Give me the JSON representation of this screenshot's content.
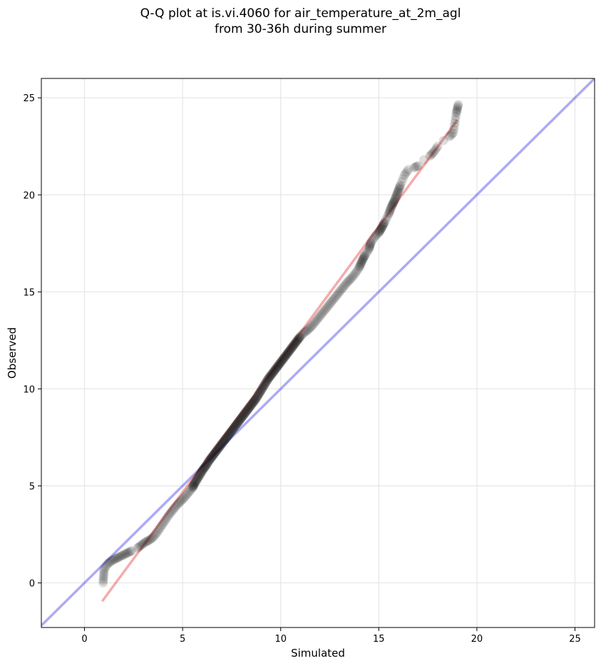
{
  "chart_data": {
    "type": "scatter",
    "title_line1": "Q-Q plot at is.vi.4060 for air_temperature_at_2m_agl",
    "title_line2": "from 30-36h during summer",
    "xlabel": "Simulated",
    "ylabel": "Observed",
    "xlim": [
      -2.2,
      26
    ],
    "ylim": [
      -2.3,
      26
    ],
    "xticks": [
      0,
      5,
      10,
      15,
      20,
      25
    ],
    "yticks": [
      0,
      5,
      10,
      15,
      20,
      25
    ],
    "grid": true,
    "colors": {
      "points": "#000000",
      "identity_line": "#0000dd",
      "fit_line": "#dd0000",
      "grid": "#e6e6e6"
    },
    "identity_line": {
      "x": [
        -2.2,
        26
      ],
      "y": [
        -2.2,
        26
      ]
    },
    "fit_line": {
      "x": [
        0.9,
        19.0
      ],
      "y": [
        -0.95,
        23.85
      ]
    },
    "quantiles": [
      [
        0.95,
        0.0
      ],
      [
        1.0,
        0.7
      ],
      [
        1.2,
        1.0
      ],
      [
        1.4,
        1.15
      ],
      [
        1.6,
        1.25
      ],
      [
        1.8,
        1.35
      ],
      [
        2.0,
        1.45
      ],
      [
        2.2,
        1.55
      ],
      [
        2.4,
        1.65
      ],
      [
        2.7,
        1.8
      ],
      [
        2.9,
        1.95
      ],
      [
        3.1,
        2.1
      ],
      [
        3.3,
        2.2
      ],
      [
        3.5,
        2.35
      ],
      [
        3.7,
        2.6
      ],
      [
        3.9,
        2.9
      ],
      [
        4.1,
        3.2
      ],
      [
        4.3,
        3.5
      ],
      [
        4.5,
        3.75
      ],
      [
        4.7,
        4.0
      ],
      [
        4.9,
        4.2
      ],
      [
        5.1,
        4.4
      ],
      [
        5.3,
        4.65
      ],
      [
        5.5,
        4.9
      ],
      [
        5.6,
        5.1
      ],
      [
        5.75,
        5.35
      ],
      [
        5.9,
        5.6
      ],
      [
        6.05,
        5.85
      ],
      [
        6.2,
        6.05
      ],
      [
        6.35,
        6.3
      ],
      [
        6.5,
        6.5
      ],
      [
        6.65,
        6.7
      ],
      [
        6.8,
        6.9
      ],
      [
        6.95,
        7.1
      ],
      [
        7.1,
        7.3
      ],
      [
        7.25,
        7.5
      ],
      [
        7.4,
        7.7
      ],
      [
        7.55,
        7.9
      ],
      [
        7.7,
        8.1
      ],
      [
        7.85,
        8.3
      ],
      [
        8.0,
        8.5
      ],
      [
        8.15,
        8.7
      ],
      [
        8.3,
        8.9
      ],
      [
        8.45,
        9.1
      ],
      [
        8.6,
        9.3
      ],
      [
        8.75,
        9.5
      ],
      [
        8.9,
        9.75
      ],
      [
        9.05,
        10.0
      ],
      [
        9.2,
        10.25
      ],
      [
        9.35,
        10.5
      ],
      [
        9.5,
        10.7
      ],
      [
        9.65,
        10.9
      ],
      [
        9.8,
        11.1
      ],
      [
        9.95,
        11.3
      ],
      [
        10.1,
        11.5
      ],
      [
        10.25,
        11.7
      ],
      [
        10.4,
        11.9
      ],
      [
        10.55,
        12.1
      ],
      [
        10.7,
        12.3
      ],
      [
        10.85,
        12.5
      ],
      [
        11.0,
        12.7
      ],
      [
        11.2,
        12.9
      ],
      [
        11.4,
        13.05
      ],
      [
        11.6,
        13.25
      ],
      [
        11.8,
        13.5
      ],
      [
        12.0,
        13.75
      ],
      [
        12.2,
        14.0
      ],
      [
        12.4,
        14.25
      ],
      [
        12.6,
        14.5
      ],
      [
        12.8,
        14.75
      ],
      [
        13.0,
        15.0
      ],
      [
        13.2,
        15.25
      ],
      [
        13.4,
        15.5
      ],
      [
        13.6,
        15.7
      ],
      [
        13.8,
        15.95
      ],
      [
        14.0,
        16.25
      ],
      [
        14.15,
        16.6
      ],
      [
        14.3,
        16.9
      ],
      [
        14.5,
        17.2
      ],
      [
        14.6,
        17.55
      ],
      [
        14.8,
        17.85
      ],
      [
        15.0,
        18.05
      ],
      [
        15.15,
        18.3
      ],
      [
        15.3,
        18.6
      ],
      [
        15.5,
        19.0
      ],
      [
        15.65,
        19.4
      ],
      [
        15.8,
        19.7
      ],
      [
        15.95,
        20.1
      ],
      [
        16.1,
        20.5
      ],
      [
        16.3,
        21.0
      ],
      [
        16.5,
        21.3
      ],
      [
        16.8,
        21.4
      ],
      [
        17.0,
        21.5
      ],
      [
        17.3,
        21.8
      ],
      [
        17.6,
        22.0
      ],
      [
        17.8,
        22.2
      ],
      [
        18.0,
        22.5
      ],
      [
        18.3,
        22.8
      ],
      [
        18.6,
        23.0
      ],
      [
        18.8,
        23.2
      ],
      [
        18.95,
        24.2
      ],
      [
        19.05,
        24.65
      ]
    ]
  }
}
